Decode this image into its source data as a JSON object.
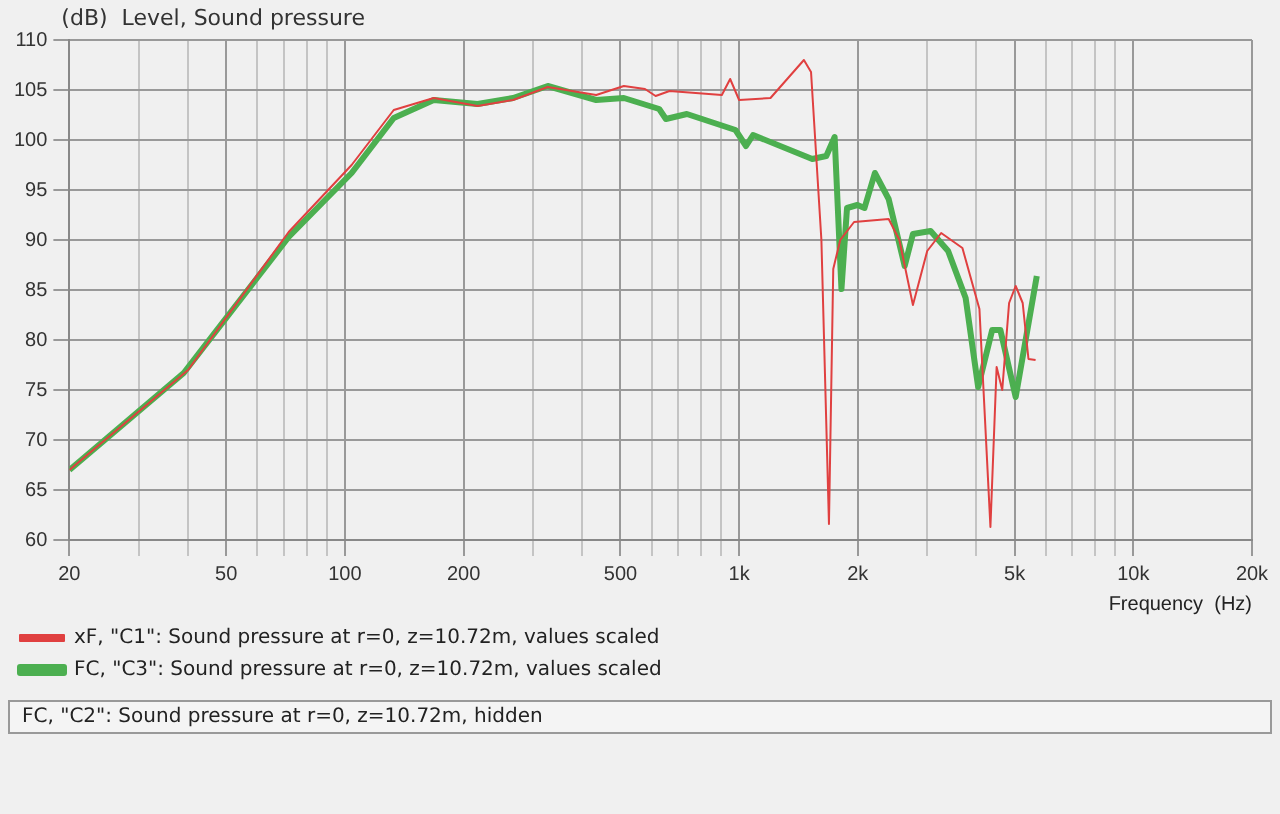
{
  "chart_data": {
    "type": "line",
    "xlabel": "Frequency  (Hz)",
    "ylabel": "(dB)  Level, Sound pressure",
    "log": "x",
    "grid": true,
    "legend": "bottom",
    "marker": "none",
    "line_style": "solid",
    "xlim": [
      20,
      20000
    ],
    "ylim": [
      60,
      110
    ],
    "xticks": [
      20,
      {
        "value": 30,
        "label": null
      },
      {
        "value": 40,
        "label": null
      },
      50,
      {
        "value": 60,
        "label": null
      },
      {
        "value": 70,
        "label": null
      },
      {
        "value": 80,
        "label": null
      },
      {
        "value": 90,
        "label": null
      },
      100,
      200,
      {
        "value": 300,
        "label": null
      },
      {
        "value": 400,
        "label": null
      },
      500,
      {
        "value": 600,
        "label": null
      },
      {
        "value": 700,
        "label": null
      },
      {
        "value": 800,
        "label": null
      },
      {
        "value": 900,
        "label": null
      },
      {
        "value": 1000,
        "label": "1k"
      },
      {
        "value": 2000,
        "label": "2k"
      },
      {
        "value": 3000,
        "label": null
      },
      {
        "value": 4000,
        "label": null
      },
      {
        "value": 5000,
        "label": "5k"
      },
      {
        "value": 6000,
        "label": null
      },
      {
        "value": 7000,
        "label": null
      },
      {
        "value": 8000,
        "label": null
      },
      {
        "value": 9000,
        "label": null
      },
      {
        "value": 10000,
        "label": "10k"
      },
      {
        "value": 20000,
        "label": "20k"
      }
    ],
    "yticks": [
      60,
      65,
      70,
      75,
      80,
      85,
      90,
      95,
      100,
      105,
      110
    ],
    "series": [
      {
        "name": "xF, \"C1\": Sound pressure at r=0, z=10.72m, values scaled",
        "color": "#e04040",
        "x": [
          20,
          40,
          72,
          104,
          133,
          168,
          217,
          267,
          327,
          434,
          510,
          577,
          614,
          666,
          904,
          949,
          1000,
          1201,
          1460,
          1522,
          1617,
          1690,
          1733,
          1805,
          1957,
          2395,
          2550,
          2760,
          3000,
          3255,
          3685,
          4070,
          4340,
          4500,
          4650,
          4840,
          5030,
          5240,
          5420,
          5650
        ],
        "values": [
          67,
          77,
          90.8,
          97.5,
          103,
          104.2,
          103.4,
          104,
          105.3,
          104.5,
          105.4,
          105.1,
          104.4,
          104.9,
          104.5,
          106.1,
          104,
          104.2,
          108,
          106.8,
          90,
          61.6,
          87.1,
          90,
          91.8,
          92.1,
          90,
          83.5,
          88.9,
          90.7,
          89.2,
          83.1,
          61.3,
          77.3,
          75,
          83.7,
          85.4,
          83.7,
          78.1,
          78
        ]
      },
      {
        "name": "FC, \"C3\": Sound pressure at r=0, z=10.72m, values scaled",
        "color": "#4caf50",
        "x": [
          20,
          39,
          72,
          104,
          133,
          168,
          217,
          267,
          327,
          434,
          510,
          627,
          652,
          737,
          979,
          1041,
          1085,
          1533,
          1664,
          1747,
          1818,
          1878,
          1995,
          2080,
          2210,
          2395,
          2630,
          2760,
          3060,
          3390,
          3755,
          4040,
          4385,
          4600,
          5030,
          5690
        ],
        "values": [
          67,
          76.7,
          90.3,
          96.7,
          102.2,
          104,
          103.6,
          104.2,
          105.4,
          104,
          104.2,
          103.1,
          102.1,
          102.6,
          101,
          99.4,
          100.5,
          98.1,
          98.4,
          100.3,
          85.1,
          93.2,
          93.5,
          93.2,
          96.7,
          94.1,
          87.4,
          90.6,
          90.9,
          88.9,
          84.2,
          75.3,
          81,
          81,
          74.3,
          86.4
        ]
      }
    ],
    "annotations": [
      "FC, \"C2\": Sound pressure at r=0, z=10.72m, hidden"
    ]
  }
}
